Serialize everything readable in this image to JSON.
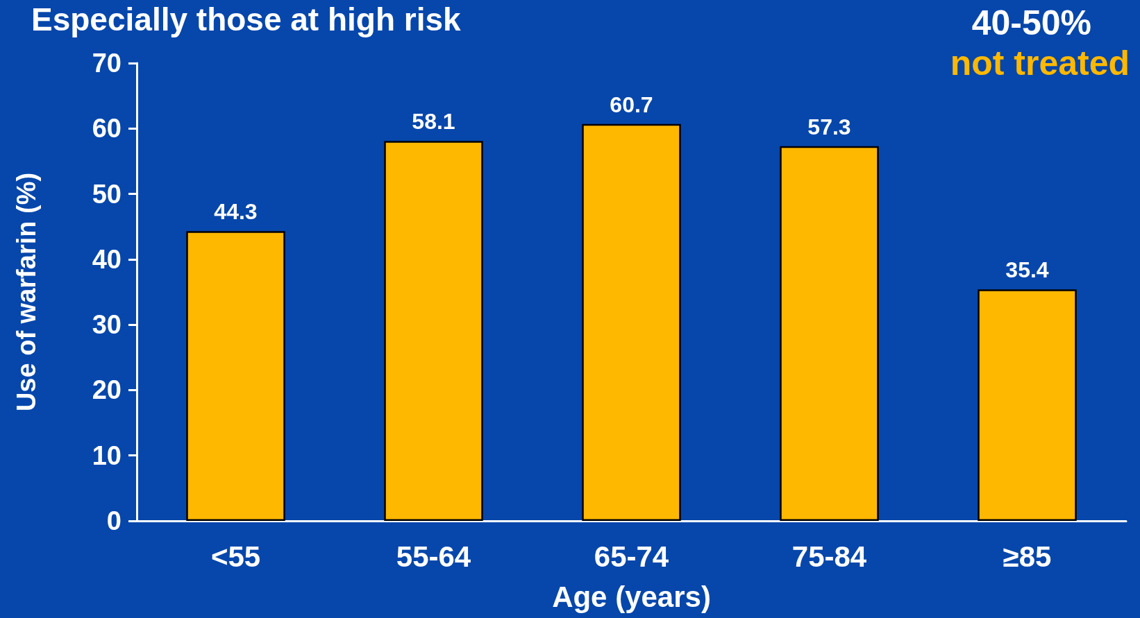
{
  "chart_data": {
    "type": "bar",
    "title": "Especially those at high risk",
    "xlabel": "Age (years)",
    "ylabel": "Use of warfarin (%)",
    "categories": [
      "<55",
      "55-64",
      "65-74",
      "75-84",
      "≥85"
    ],
    "values": [
      44.3,
      58.1,
      60.7,
      57.3,
      35.4
    ],
    "color": "#ffb800",
    "ylim": [
      0,
      70
    ],
    "yticks": [
      0,
      10,
      20,
      30,
      40,
      50,
      60,
      70
    ],
    "grid": false,
    "data_labels": true,
    "annotations": [
      "40-50%",
      "not treated"
    ]
  }
}
